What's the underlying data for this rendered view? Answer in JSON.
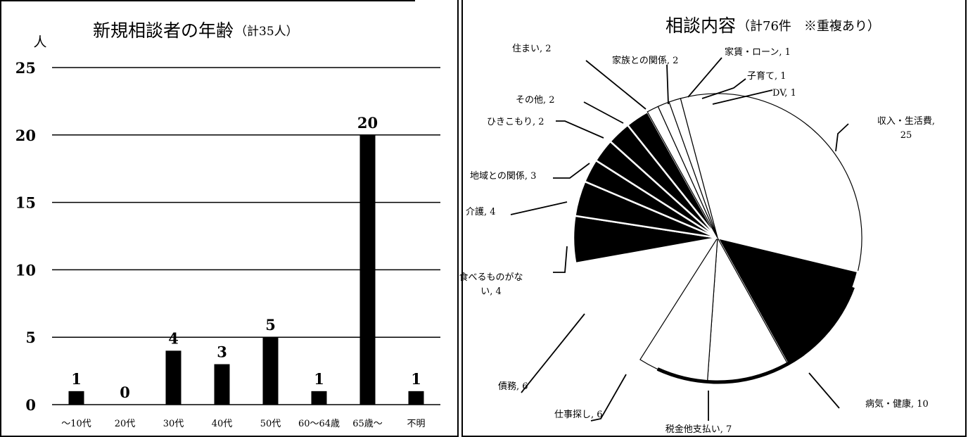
{
  "charts": {
    "age": {
      "title_main": "新規相談者の年齢",
      "title_sub": "（計35人）",
      "y_unit": "人"
    },
    "topic": {
      "title_main": "相談内容",
      "title_sub": "（計76件　※重複あり）"
    }
  },
  "chart_data": [
    {
      "type": "bar",
      "title": "新規相談者の年齢（計35人）",
      "ylabel": "人",
      "ylim": [
        0,
        25
      ],
      "yticks": [
        0,
        5,
        10,
        15,
        20,
        25
      ],
      "grid": true,
      "categories": [
        "～10代",
        "20代",
        "30代",
        "40代",
        "50代",
        "60～64歳",
        "65歳～",
        "不明"
      ],
      "values": [
        1,
        0,
        4,
        3,
        5,
        1,
        20,
        1
      ],
      "data_labels": [
        "1",
        "0",
        "4",
        "3",
        "5",
        "1",
        "20",
        "1"
      ],
      "color": "#000000"
    },
    {
      "type": "pie",
      "title": "相談内容（計76件　※重複あり）",
      "slices": [
        {
          "label": "収入・生活費",
          "value": 25,
          "text": "収入・生活費,\n25",
          "fill": "white"
        },
        {
          "label": "病気・健康",
          "value": 10,
          "text": "病気・健康, 10",
          "fill": "black"
        },
        {
          "label": "税金他支払い",
          "value": 7,
          "text": "税金他支払い, 7",
          "fill": "white"
        },
        {
          "label": "仕事探し",
          "value": 6,
          "text": "仕事探し, 6",
          "fill": "white"
        },
        {
          "label": "債務",
          "value": 6,
          "text": "債務, 6",
          "fill": "white"
        },
        {
          "label": "食べるものがない",
          "value": 4,
          "text": "食べるものがな\nい, 4",
          "fill": "white"
        },
        {
          "label": "介護",
          "value": 4,
          "text": "介護, 4",
          "fill": "black"
        },
        {
          "label": "地域との関係",
          "value": 3,
          "text": "地域との関係, 3",
          "fill": "black"
        },
        {
          "label": "ひきこもり",
          "value": 2,
          "text": "ひきこもり, 2",
          "fill": "black"
        },
        {
          "label": "その他",
          "value": 2,
          "text": "その他, 2",
          "fill": "black"
        },
        {
          "label": "住まい",
          "value": 2,
          "text": "住まい, 2",
          "fill": "black"
        },
        {
          "label": "家族との関係",
          "value": 2,
          "text": "家族との関係, 2",
          "fill": "black"
        },
        {
          "label": "家賃・ローン",
          "value": 1,
          "text": "家賃・ローン, 1",
          "fill": "white"
        },
        {
          "label": "子育て",
          "value": 1,
          "text": "子育て, 1",
          "fill": "white"
        },
        {
          "label": "DV",
          "value": 1,
          "text": "DV, 1",
          "fill": "white"
        }
      ]
    }
  ]
}
